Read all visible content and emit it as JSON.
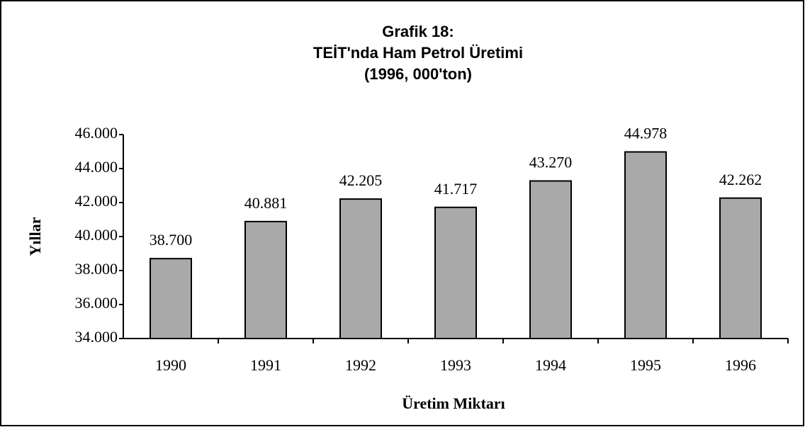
{
  "chart_data": {
    "type": "bar",
    "title": [
      "Grafik 18:",
      "TEİT'nda Ham Petrol Üretimi",
      "(1996, 000'ton)"
    ],
    "x_label": "Üretim Miktarı",
    "y_label": "Yıllar",
    "categories": [
      "1990",
      "1991",
      "1992",
      "1993",
      "1994",
      "1995",
      "1996"
    ],
    "values": [
      38700,
      40881,
      42205,
      41717,
      43270,
      44978,
      42262
    ],
    "value_labels": [
      "38.700",
      "40.881",
      "42.205",
      "41.717",
      "43.270",
      "44.978",
      "42.262"
    ],
    "color": "#a9a9a9",
    "ylim": [
      34000,
      46000
    ],
    "yticks": [
      {
        "value": 34000,
        "label": "34.000"
      },
      {
        "value": 36000,
        "label": "36.000"
      },
      {
        "value": 38000,
        "label": "38.000"
      },
      {
        "value": 40000,
        "label": "40.000"
      },
      {
        "value": 42000,
        "label": "42.000"
      },
      {
        "value": 44000,
        "label": "44.000"
      },
      {
        "value": 46000,
        "label": "46.000"
      }
    ],
    "grid": false
  }
}
